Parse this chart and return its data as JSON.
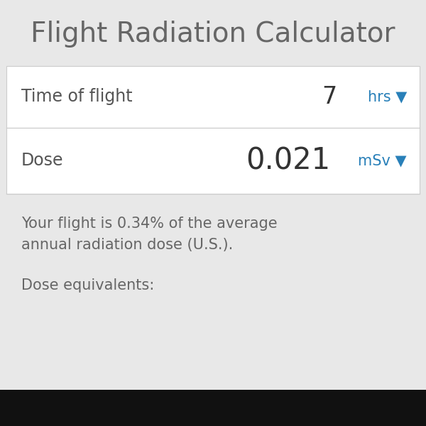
{
  "title": "Flight Radiation Calculator",
  "title_fontsize": 28,
  "title_color": "#666666",
  "background_color": "#e8e8e8",
  "row1_label": "Time of flight",
  "row1_value": "7",
  "row1_unit": "hrs ▼",
  "row2_label": "Dose",
  "row2_value": "0.021",
  "row2_unit": "mSv ▼",
  "row_bg": "#ffffff",
  "label_color": "#555555",
  "value_color": "#333333",
  "unit_color": "#2980b9",
  "desc_text1": "Your flight is 0.34% of the average",
  "desc_text2": "annual radiation dose (U.S.).",
  "equiv_text": "Dose equivalents:",
  "desc_color": "#666666",
  "bottom_bar_color": "#111111",
  "label_fontsize": 17,
  "value_fontsize_row1": 24,
  "value_fontsize_row2": 30,
  "unit_fontsize_row1": 15,
  "unit_fontsize_row2": 15,
  "desc_fontsize": 15,
  "equiv_fontsize": 15,
  "sep_color": "#cccccc"
}
